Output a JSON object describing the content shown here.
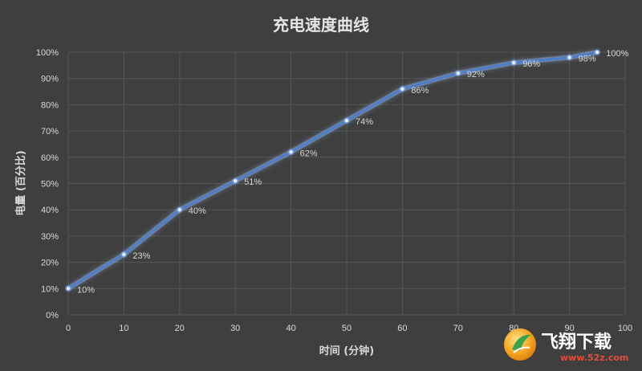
{
  "chart_data": {
    "type": "line",
    "title": "充电速度曲线",
    "xlabel": "时间 (分钟)",
    "ylabel": "电量 (百分比)",
    "xlim": [
      0,
      100
    ],
    "ylim": [
      0,
      100
    ],
    "x_ticks": [
      "0",
      "10",
      "20",
      "30",
      "40",
      "50",
      "60",
      "70",
      "80",
      "90",
      "100"
    ],
    "y_ticks": [
      "0%",
      "10%",
      "20%",
      "30%",
      "40%",
      "50%",
      "60%",
      "70%",
      "80%",
      "90%",
      "100%"
    ],
    "grid": true,
    "series": [
      {
        "x": [
          0,
          10,
          20,
          30,
          40,
          50,
          60,
          70,
          80,
          90,
          95
        ],
        "y": [
          10,
          23,
          40,
          51,
          62,
          74,
          86,
          92,
          96,
          98,
          100
        ],
        "labels": [
          "10%",
          "23%",
          "40%",
          "51%",
          "62%",
          "74%",
          "86%",
          "92%",
          "96%",
          "98%",
          "100%"
        ]
      }
    ],
    "line_color": "#4a7fd0",
    "glow_color": "#9fc3ff"
  },
  "watermark": {
    "text": "飞翔下载",
    "url": "www.52z.com"
  }
}
